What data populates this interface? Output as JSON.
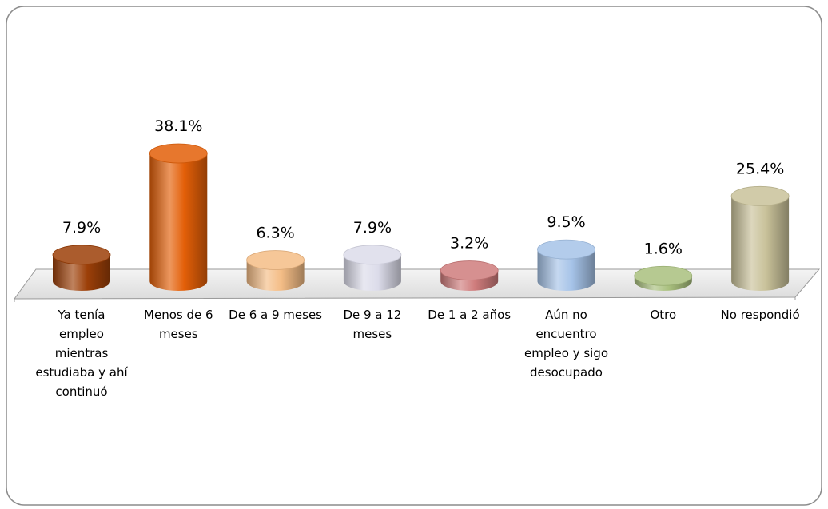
{
  "chart_data": {
    "type": "bar",
    "categories": [
      "Ya tenía empleo mientras estudiaba y ahí continuó",
      "Menos de 6 meses",
      "De 6 a 9 meses",
      "De 9 a 12 meses",
      "De 1 a 2 años",
      "Aún no encuentro empleo y sigo desocupado",
      "Otro",
      "No respondió"
    ],
    "values": [
      7.9,
      38.1,
      6.3,
      7.9,
      3.2,
      9.5,
      1.6,
      25.4
    ],
    "value_labels": [
      "7.9%",
      "38.1%",
      "6.3%",
      "7.9%",
      "3.2%",
      "9.5%",
      "1.6%",
      "25.4%"
    ],
    "colors": [
      "#9c3f08",
      "#e35f08",
      "#f4bd86",
      "#dcdcea",
      "#cf7c7c",
      "#a6c3e8",
      "#a9c07e",
      "#c9c29a"
    ]
  }
}
